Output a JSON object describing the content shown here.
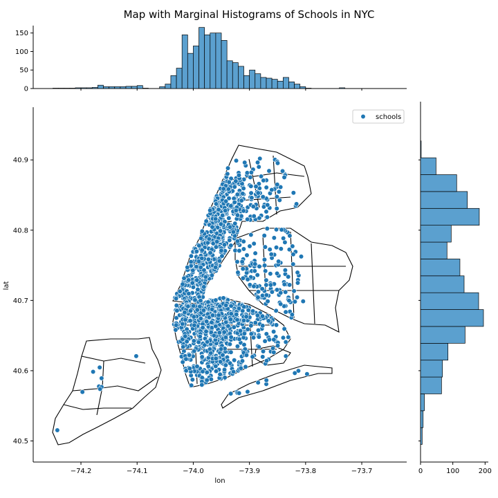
{
  "chart_data": {
    "type": "scatter",
    "title": "Map with Marginal Histograms of Schools in NYC",
    "xlabel": "lon",
    "ylabel": "lat",
    "xlim": [
      -74.285,
      -73.62
    ],
    "ylim": [
      40.47,
      40.975
    ],
    "x_ticks": [
      -74.2,
      -74.1,
      -74.0,
      -73.9,
      -73.8,
      -73.7
    ],
    "x_tick_labels": [
      "−74.2",
      "−74.1",
      "−74.0",
      "−73.9",
      "−73.8",
      "−73.7"
    ],
    "y_ticks": [
      40.5,
      40.6,
      40.7,
      40.8,
      40.9
    ],
    "y_tick_labels": [
      "40.5",
      "40.6",
      "40.7",
      "40.8",
      "40.9"
    ],
    "legend": {
      "label": "schools",
      "position": "top-right"
    },
    "colors": {
      "points": "#1f77b4",
      "bars": "#5ba0cf",
      "outline": "#000000"
    },
    "grid": false,
    "marginal_x_hist": {
      "bin_edges_start": -74.25,
      "bin_width": 0.01,
      "counts": [
        1,
        1,
        1,
        1,
        2,
        2,
        2,
        3,
        9,
        5,
        5,
        5,
        5,
        6,
        6,
        8,
        1,
        0,
        0,
        5,
        12,
        35,
        55,
        145,
        95,
        115,
        165,
        145,
        150,
        150,
        130,
        75,
        70,
        60,
        35,
        50,
        40,
        30,
        28,
        25,
        20,
        30,
        18,
        12,
        5,
        1,
        0,
        0,
        0,
        0,
        0,
        2
      ],
      "yticks": [
        0,
        50,
        100,
        150
      ],
      "ytick_labels": [
        "0",
        "50",
        "100",
        "150"
      ],
      "ylim": [
        0,
        170
      ]
    },
    "marginal_y_hist": {
      "bin_edges_start": 40.495,
      "bin_width": 0.024,
      "counts": [
        5,
        8,
        12,
        65,
        68,
        85,
        138,
        195,
        180,
        135,
        122,
        82,
        95,
        182,
        145,
        112,
        48,
        2
      ],
      "xticks": [
        0,
        100,
        200
      ],
      "xtick_labels": [
        "0",
        "100",
        "200"
      ],
      "xlim": [
        0,
        210
      ]
    }
  }
}
